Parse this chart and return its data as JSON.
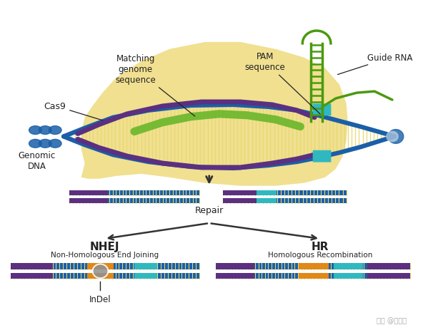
{
  "bg_color": "#ffffff",
  "yellow_blob_color": "#f0e090",
  "dna_blue": "#1a5fa8",
  "dna_purple": "#5b3080",
  "dna_ticks_light": "#e8d870",
  "pam_cyan": "#30b8c0",
  "guide_rna_green": "#4a9a10",
  "matching_green": "#70b830",
  "orange_color": "#e08818",
  "gray_color": "#909090",
  "text_color": "#222222",
  "arrow_color": "#333333",
  "title_nhej": "NHEJ",
  "sub_nhej": "Non-Homologous End Joining",
  "title_hr": "HR",
  "sub_hr": "Homologous Recombination",
  "label_repair": "Repair",
  "label_indel": "InDel",
  "label_cas9": "Cas9",
  "label_genomic": "Genomic\nDNA",
  "label_matching": "Matching\ngenome\nsequence",
  "label_pam": "PAM\nsequence",
  "label_guide": "Guide RNA",
  "watermark": "知乎 @黄潮勇"
}
